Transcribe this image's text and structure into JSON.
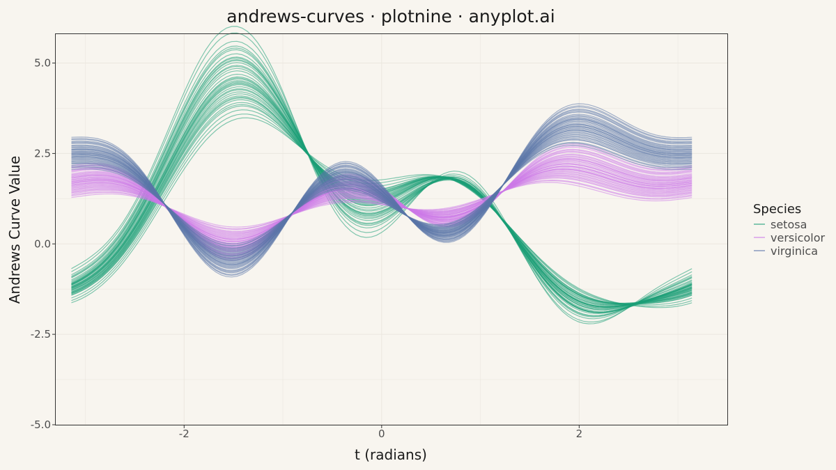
{
  "chart_data": {
    "type": "line",
    "subtype": "andrews-curves",
    "title": "andrews-curves · plotnine · anyplot.ai",
    "xlabel": "t (radians)",
    "ylabel": "Andrews Curve Value",
    "xlim": [
      -3.3,
      3.5
    ],
    "ylim": [
      -5.0,
      5.8
    ],
    "x_ticks": [
      -2,
      0,
      2
    ],
    "y_ticks": [
      5.0,
      2.5,
      0.0,
      -2.5,
      -5.0
    ],
    "x_tick_labels": [
      "-2",
      "0",
      "2"
    ],
    "y_tick_labels": [
      "5.0",
      "2.5",
      "0.0",
      "-2.5",
      "-5.0"
    ],
    "grid": true,
    "legend": {
      "title": "Species",
      "position": "right"
    },
    "t_range": [
      -3.14159,
      3.14159
    ],
    "series": [
      {
        "name": "setosa",
        "color": "#1b9e77",
        "coefficients": [
          [
            1.36,
            -1.95,
            1.45,
            0.5,
            -1.0,
            0.6,
            -0.3
          ],
          [
            1.3,
            -1.8,
            1.55,
            0.45,
            -0.9,
            0.55,
            -0.25
          ],
          [
            1.4,
            -2.1,
            1.35,
            0.55,
            -1.1,
            0.65,
            -0.35
          ],
          [
            1.25,
            -1.7,
            1.6,
            0.4,
            -0.85,
            0.5,
            -0.2
          ],
          [
            1.45,
            -2.2,
            1.3,
            0.6,
            -1.15,
            0.7,
            -0.4
          ],
          [
            1.33,
            -1.9,
            1.5,
            0.48,
            -0.95,
            0.58,
            -0.28
          ],
          [
            1.5,
            -2.3,
            1.25,
            0.65,
            -1.2,
            0.75,
            -0.45
          ],
          [
            1.2,
            -1.6,
            1.65,
            0.38,
            -0.8,
            0.45,
            -0.18
          ],
          [
            1.38,
            -2.0,
            1.42,
            0.52,
            -1.02,
            0.62,
            -0.32
          ],
          [
            1.28,
            -1.75,
            1.58,
            0.43,
            -0.88,
            0.52,
            -0.22
          ],
          [
            1.42,
            -2.15,
            1.38,
            0.57,
            -1.12,
            0.67,
            -0.37
          ],
          [
            1.35,
            -1.92,
            1.48,
            0.49,
            -0.97,
            0.59,
            -0.29
          ],
          [
            1.55,
            -2.4,
            1.2,
            0.7,
            -1.25,
            0.8,
            -0.5
          ],
          [
            1.18,
            -1.55,
            1.7,
            0.35,
            -0.78,
            0.42,
            -0.15
          ],
          [
            1.32,
            -1.88,
            1.52,
            0.47,
            -0.93,
            0.57,
            -0.27
          ],
          [
            1.48,
            -2.25,
            1.28,
            0.62,
            -1.18,
            0.72,
            -0.42
          ],
          [
            1.22,
            -1.65,
            1.62,
            0.39,
            -0.82,
            0.47,
            -0.19
          ],
          [
            1.39,
            -2.05,
            1.4,
            0.53,
            -1.05,
            0.63,
            -0.33
          ],
          [
            1.27,
            -1.72,
            1.57,
            0.42,
            -0.87,
            0.51,
            -0.21
          ],
          [
            1.43,
            -2.18,
            1.36,
            0.58,
            -1.13,
            0.68,
            -0.38
          ],
          [
            1.6,
            -2.5,
            1.15,
            0.75,
            -1.3,
            0.85,
            -0.55
          ],
          [
            1.15,
            -1.5,
            1.75,
            0.33,
            -0.75,
            0.4,
            -0.12
          ],
          [
            1.37,
            -1.97,
            1.46,
            0.51,
            -0.99,
            0.61,
            -0.31
          ],
          [
            1.29,
            -1.78,
            1.56,
            0.44,
            -0.89,
            0.53,
            -0.23
          ],
          [
            1.46,
            -2.22,
            1.32,
            0.59,
            -1.16,
            0.69,
            -0.39
          ],
          [
            1.34,
            -1.91,
            1.49,
            0.48,
            -0.96,
            0.58,
            -0.29
          ],
          [
            1.52,
            -2.35,
            1.22,
            0.67,
            -1.22,
            0.77,
            -0.47
          ],
          [
            1.24,
            -1.68,
            1.61,
            0.41,
            -0.84,
            0.49,
            -0.2
          ],
          [
            1.41,
            -2.12,
            1.37,
            0.56,
            -1.09,
            0.66,
            -0.36
          ],
          [
            1.31,
            -1.85,
            1.53,
            0.46,
            -0.92,
            0.56,
            -0.26
          ],
          [
            1.65,
            -2.55,
            1.1,
            0.8,
            -1.35,
            0.9,
            -0.6
          ],
          [
            1.12,
            -1.45,
            1.8,
            0.3,
            -0.72,
            0.38,
            -0.1
          ],
          [
            1.36,
            -1.94,
            1.47,
            0.5,
            -0.98,
            0.6,
            -0.3
          ],
          [
            1.26,
            -1.71,
            1.59,
            0.42,
            -0.86,
            0.5,
            -0.21
          ],
          [
            1.44,
            -2.19,
            1.34,
            0.58,
            -1.14,
            0.68,
            -0.38
          ],
          [
            1.33,
            -1.89,
            1.51,
            0.48,
            -0.94,
            0.57,
            -0.28
          ],
          [
            1.51,
            -2.32,
            1.24,
            0.66,
            -1.21,
            0.76,
            -0.46
          ],
          [
            1.21,
            -1.62,
            1.64,
            0.39,
            -0.81,
            0.46,
            -0.18
          ],
          [
            1.4,
            -2.08,
            1.39,
            0.54,
            -1.07,
            0.64,
            -0.34
          ],
          [
            1.3,
            -1.82,
            1.54,
            0.45,
            -0.91,
            0.55,
            -0.25
          ]
        ]
      },
      {
        "name": "versicolor",
        "color": "#cc79e8",
        "coefficients": [
          [
            1.8,
            0.55,
            -0.35,
            -0.2,
            0.25,
            -0.45,
            0.15
          ],
          [
            1.75,
            0.5,
            -0.3,
            -0.15,
            0.2,
            -0.4,
            0.12
          ],
          [
            1.85,
            0.6,
            -0.4,
            -0.25,
            0.3,
            -0.5,
            0.18
          ],
          [
            1.7,
            0.45,
            -0.25,
            -0.1,
            0.15,
            -0.35,
            0.1
          ],
          [
            1.9,
            0.65,
            -0.45,
            -0.3,
            0.35,
            -0.55,
            0.2
          ],
          [
            1.78,
            0.52,
            -0.33,
            -0.18,
            0.23,
            -0.43,
            0.14
          ],
          [
            1.95,
            0.7,
            -0.5,
            -0.35,
            0.4,
            -0.6,
            0.22
          ],
          [
            1.65,
            0.4,
            -0.2,
            -0.05,
            0.1,
            -0.3,
            0.08
          ],
          [
            1.82,
            0.57,
            -0.37,
            -0.22,
            0.27,
            -0.47,
            0.16
          ],
          [
            1.72,
            0.47,
            -0.27,
            -0.12,
            0.17,
            -0.37,
            0.11
          ],
          [
            1.88,
            0.63,
            -0.43,
            -0.28,
            0.33,
            -0.53,
            0.19
          ],
          [
            1.77,
            0.51,
            -0.32,
            -0.17,
            0.22,
            -0.42,
            0.13
          ],
          [
            2.0,
            0.75,
            -0.55,
            -0.4,
            0.45,
            -0.65,
            0.25
          ],
          [
            1.6,
            0.35,
            -0.15,
            0.0,
            0.05,
            -0.25,
            0.05
          ],
          [
            1.83,
            0.58,
            -0.38,
            -0.23,
            0.28,
            -0.48,
            0.17
          ],
          [
            1.73,
            0.48,
            -0.28,
            -0.13,
            0.18,
            -0.38,
            0.11
          ],
          [
            1.92,
            0.67,
            -0.47,
            -0.32,
            0.37,
            -0.57,
            0.21
          ],
          [
            1.68,
            0.43,
            -0.23,
            -0.08,
            0.13,
            -0.33,
            0.09
          ],
          [
            1.86,
            0.61,
            -0.41,
            -0.26,
            0.31,
            -0.51,
            0.18
          ],
          [
            1.76,
            0.49,
            -0.31,
            -0.16,
            0.21,
            -0.41,
            0.13
          ],
          [
            1.98,
            0.73,
            -0.53,
            -0.38,
            0.43,
            -0.63,
            0.24
          ],
          [
            1.62,
            0.37,
            -0.17,
            -0.02,
            0.07,
            -0.27,
            0.06
          ],
          [
            1.81,
            0.56,
            -0.36,
            -0.21,
            0.26,
            -0.46,
            0.15
          ],
          [
            1.71,
            0.46,
            -0.26,
            -0.11,
            0.16,
            -0.36,
            0.1
          ],
          [
            1.89,
            0.64,
            -0.44,
            -0.29,
            0.34,
            -0.54,
            0.2
          ],
          [
            1.79,
            0.53,
            -0.34,
            -0.19,
            0.24,
            -0.44,
            0.14
          ],
          [
            1.93,
            0.68,
            -0.48,
            -0.33,
            0.38,
            -0.58,
            0.21
          ],
          [
            1.67,
            0.42,
            -0.22,
            -0.07,
            0.12,
            -0.32,
            0.09
          ],
          [
            1.84,
            0.59,
            -0.39,
            -0.24,
            0.29,
            -0.49,
            0.17
          ],
          [
            1.74,
            0.49,
            -0.29,
            -0.14,
            0.19,
            -0.39,
            0.12
          ],
          [
            1.97,
            0.72,
            -0.52,
            -0.37,
            0.42,
            -0.62,
            0.23
          ],
          [
            1.63,
            0.38,
            -0.18,
            -0.03,
            0.08,
            -0.28,
            0.06
          ],
          [
            1.8,
            0.55,
            -0.35,
            -0.2,
            0.25,
            -0.45,
            0.15
          ],
          [
            1.69,
            0.44,
            -0.24,
            -0.09,
            0.14,
            -0.34,
            0.09
          ],
          [
            1.87,
            0.62,
            -0.42,
            -0.27,
            0.32,
            -0.52,
            0.19
          ],
          [
            1.78,
            0.52,
            -0.33,
            -0.18,
            0.23,
            -0.43,
            0.14
          ],
          [
            1.94,
            0.69,
            -0.49,
            -0.34,
            0.39,
            -0.59,
            0.22
          ],
          [
            1.66,
            0.41,
            -0.21,
            -0.06,
            0.11,
            -0.31,
            0.08
          ],
          [
            1.85,
            0.6,
            -0.4,
            -0.25,
            0.3,
            -0.5,
            0.18
          ],
          [
            1.75,
            0.5,
            -0.3,
            -0.15,
            0.2,
            -0.4,
            0.12
          ]
        ]
      },
      {
        "name": "virginica",
        "color": "#5a74a8",
        "coefficients": [
          [
            2.2,
            0.9,
            -0.8,
            -0.55,
            0.4,
            -0.7,
            0.25
          ],
          [
            2.15,
            0.85,
            -0.75,
            -0.5,
            0.35,
            -0.65,
            0.22
          ],
          [
            2.25,
            0.95,
            -0.85,
            -0.6,
            0.45,
            -0.75,
            0.28
          ],
          [
            2.1,
            0.8,
            -0.7,
            -0.45,
            0.3,
            -0.6,
            0.2
          ],
          [
            2.3,
            1.0,
            -0.9,
            -0.65,
            0.5,
            -0.8,
            0.3
          ],
          [
            2.18,
            0.88,
            -0.78,
            -0.53,
            0.38,
            -0.68,
            0.24
          ],
          [
            2.35,
            1.05,
            -0.95,
            -0.7,
            0.55,
            -0.85,
            0.32
          ],
          [
            2.05,
            0.75,
            -0.65,
            -0.4,
            0.25,
            -0.55,
            0.18
          ],
          [
            2.22,
            0.92,
            -0.82,
            -0.57,
            0.42,
            -0.72,
            0.26
          ],
          [
            2.12,
            0.82,
            -0.72,
            -0.47,
            0.32,
            -0.62,
            0.21
          ],
          [
            2.28,
            0.98,
            -0.88,
            -0.63,
            0.48,
            -0.78,
            0.29
          ],
          [
            2.17,
            0.87,
            -0.77,
            -0.52,
            0.37,
            -0.67,
            0.23
          ],
          [
            2.4,
            1.1,
            -1.0,
            -0.75,
            0.6,
            -0.9,
            0.35
          ],
          [
            2.0,
            0.7,
            -0.6,
            -0.35,
            0.2,
            -0.5,
            0.15
          ],
          [
            2.23,
            0.93,
            -0.83,
            -0.58,
            0.43,
            -0.73,
            0.27
          ],
          [
            2.13,
            0.83,
            -0.73,
            -0.48,
            0.33,
            -0.63,
            0.21
          ],
          [
            2.32,
            1.02,
            -0.92,
            -0.67,
            0.52,
            -0.82,
            0.31
          ],
          [
            2.08,
            0.78,
            -0.68,
            -0.43,
            0.28,
            -0.58,
            0.19
          ],
          [
            2.26,
            0.96,
            -0.86,
            -0.61,
            0.46,
            -0.76,
            0.28
          ],
          [
            2.16,
            0.86,
            -0.76,
            -0.51,
            0.36,
            -0.66,
            0.23
          ],
          [
            2.38,
            1.08,
            -0.98,
            -0.73,
            0.58,
            -0.88,
            0.34
          ],
          [
            2.02,
            0.72,
            -0.62,
            -0.37,
            0.22,
            -0.52,
            0.16
          ],
          [
            2.21,
            0.91,
            -0.81,
            -0.56,
            0.41,
            -0.71,
            0.25
          ],
          [
            2.11,
            0.81,
            -0.71,
            -0.46,
            0.31,
            -0.61,
            0.2
          ],
          [
            2.29,
            0.99,
            -0.89,
            -0.64,
            0.49,
            -0.79,
            0.29
          ],
          [
            2.19,
            0.89,
            -0.79,
            -0.54,
            0.39,
            -0.69,
            0.24
          ],
          [
            2.33,
            1.03,
            -0.93,
            -0.68,
            0.53,
            -0.83,
            0.31
          ],
          [
            2.07,
            0.77,
            -0.67,
            -0.42,
            0.27,
            -0.57,
            0.18
          ],
          [
            2.24,
            0.94,
            -0.84,
            -0.59,
            0.44,
            -0.74,
            0.27
          ],
          [
            2.14,
            0.84,
            -0.74,
            -0.49,
            0.34,
            -0.64,
            0.22
          ],
          [
            2.37,
            1.07,
            -0.97,
            -0.72,
            0.57,
            -0.87,
            0.33
          ],
          [
            2.03,
            0.73,
            -0.63,
            -0.38,
            0.23,
            -0.53,
            0.16
          ],
          [
            2.2,
            0.9,
            -0.8,
            -0.55,
            0.4,
            -0.7,
            0.25
          ],
          [
            2.09,
            0.79,
            -0.69,
            -0.44,
            0.29,
            -0.59,
            0.19
          ],
          [
            2.27,
            0.97,
            -0.87,
            -0.62,
            0.47,
            -0.77,
            0.28
          ],
          [
            2.18,
            0.88,
            -0.78,
            -0.53,
            0.38,
            -0.68,
            0.24
          ],
          [
            2.34,
            1.04,
            -0.94,
            -0.69,
            0.54,
            -0.84,
            0.32
          ],
          [
            2.06,
            0.76,
            -0.66,
            -0.41,
            0.26,
            -0.56,
            0.17
          ],
          [
            2.25,
            0.95,
            -0.85,
            -0.6,
            0.45,
            -0.75,
            0.28
          ],
          [
            2.15,
            0.85,
            -0.75,
            -0.5,
            0.35,
            -0.65,
            0.22
          ]
        ]
      }
    ]
  }
}
